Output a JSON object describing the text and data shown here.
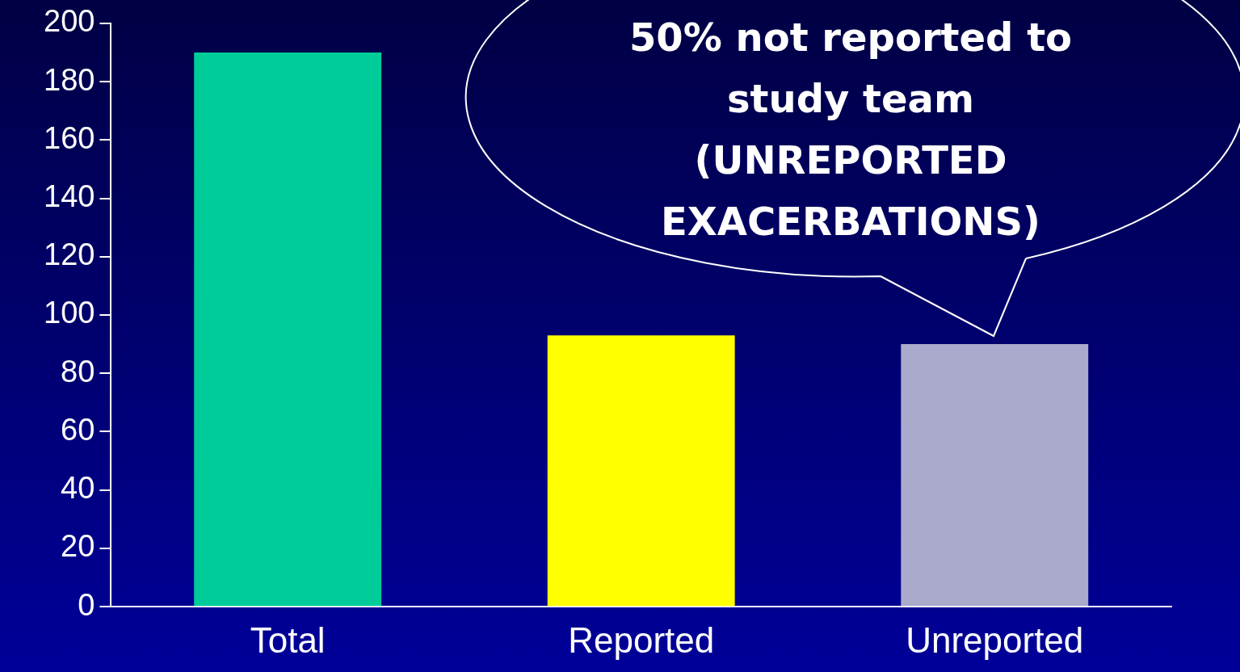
{
  "chart_data": {
    "type": "bar",
    "categories": [
      "Total",
      "Reported",
      "Unreported"
    ],
    "values": [
      190,
      93,
      90
    ],
    "colors": [
      "#00cc99",
      "#ffff00",
      "#aaaacc"
    ],
    "ylim": [
      0,
      200
    ],
    "yticks": [
      0,
      20,
      40,
      60,
      80,
      100,
      120,
      140,
      160,
      180,
      200
    ],
    "grid": false,
    "legend": false,
    "annotations": [
      "50% not reported to study team (UNREPORTED EXACERBATIONS)"
    ]
  }
}
